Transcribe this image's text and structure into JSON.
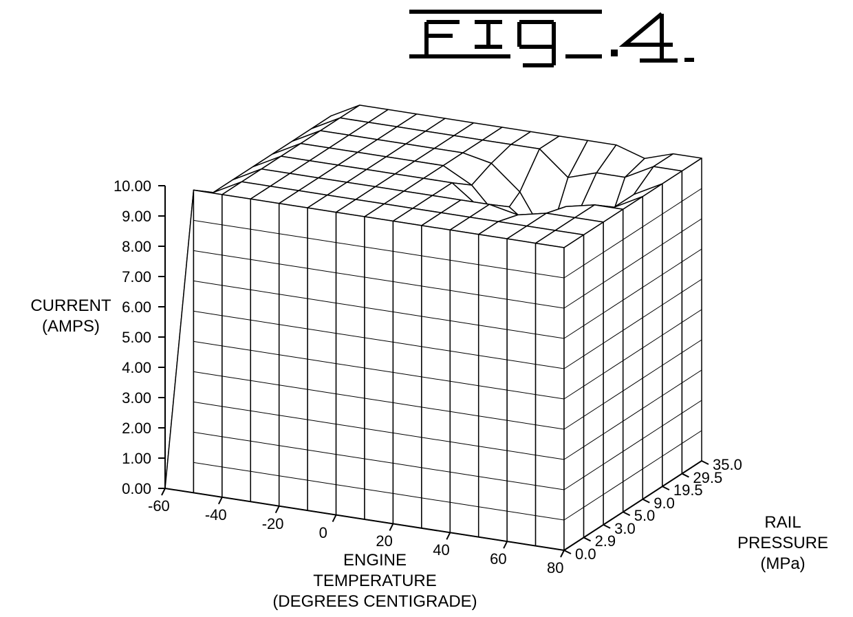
{
  "figure_label": "Fig.4",
  "chart": {
    "type": "surface3d",
    "stroke_color": "#000000",
    "fill_color": "#ffffff",
    "line_width": 1.5,
    "label_fontsize": 24,
    "tick_fontsize": 22,
    "z_axis": {
      "label_line1": "CURRENT",
      "label_line2": "(AMPS)",
      "ticks": [
        "0.00",
        "1.00",
        "2.00",
        "3.00",
        "4.00",
        "5.00",
        "6.00",
        "7.00",
        "8.00",
        "9.00",
        "10.00"
      ],
      "range": [
        0,
        10
      ]
    },
    "x_axis": {
      "label_line1": "ENGINE",
      "label_line2": "TEMPERATURE",
      "label_line3": "(DEGREES CENTIGRADE)",
      "ticks": [
        "-60",
        "-40",
        "-20",
        "0",
        "20",
        "40",
        "60",
        "80"
      ],
      "range": [
        -60,
        80
      ]
    },
    "y_axis": {
      "label_line1": "RAIL",
      "label_line2": "PRESSURE",
      "label_line3": "(MPa)",
      "ticks": [
        "0.0",
        "2.9",
        "3.0",
        "5.0",
        "9.0",
        "19.5",
        "29.5",
        "35.0"
      ],
      "range_index": [
        0,
        7
      ]
    },
    "surface_comment": "z values = current (amps), grid rows over rail-pressure index 0..7, cols over engine-temp -60..80 step 10 (15 cols)",
    "z_values": [
      [
        0.0,
        10.0,
        10.0,
        10.0,
        10.0,
        10.0,
        10.0,
        10.0,
        10.0,
        10.0,
        10.0,
        10.0,
        10.0,
        10.0,
        10.0
      ],
      [
        0.0,
        9.5,
        10.0,
        10.0,
        10.0,
        10.0,
        10.0,
        10.0,
        10.0,
        10.0,
        10.0,
        10.0,
        10.0,
        10.0,
        10.0
      ],
      [
        0.0,
        9.5,
        10.0,
        10.0,
        10.0,
        10.0,
        10.0,
        10.0,
        10.0,
        10.0,
        10.0,
        9.8,
        10.0,
        10.0,
        10.0
      ],
      [
        0.0,
        9.5,
        10.0,
        10.0,
        10.0,
        10.0,
        10.0,
        10.0,
        10.0,
        9.3,
        9.5,
        8.8,
        9.8,
        10.0,
        10.0
      ],
      [
        0.0,
        9.5,
        10.0,
        10.0,
        10.0,
        10.0,
        10.0,
        10.0,
        9.5,
        8.5,
        8.2,
        9.0,
        9.0,
        9.5,
        10.0
      ],
      [
        0.0,
        9.5,
        10.0,
        10.0,
        10.0,
        10.0,
        10.0,
        10.0,
        9.8,
        9.0,
        7.5,
        8.5,
        8.0,
        9.5,
        10.0
      ],
      [
        0.0,
        9.5,
        10.0,
        10.0,
        10.0,
        10.0,
        10.0,
        10.0,
        10.0,
        10.0,
        9.2,
        9.5,
        9.5,
        10.0,
        10.0
      ],
      [
        0.0,
        9.5,
        10.0,
        10.0,
        10.0,
        10.0,
        10.0,
        10.0,
        10.0,
        10.0,
        10.0,
        10.0,
        9.7,
        10.0,
        10.0
      ]
    ]
  }
}
